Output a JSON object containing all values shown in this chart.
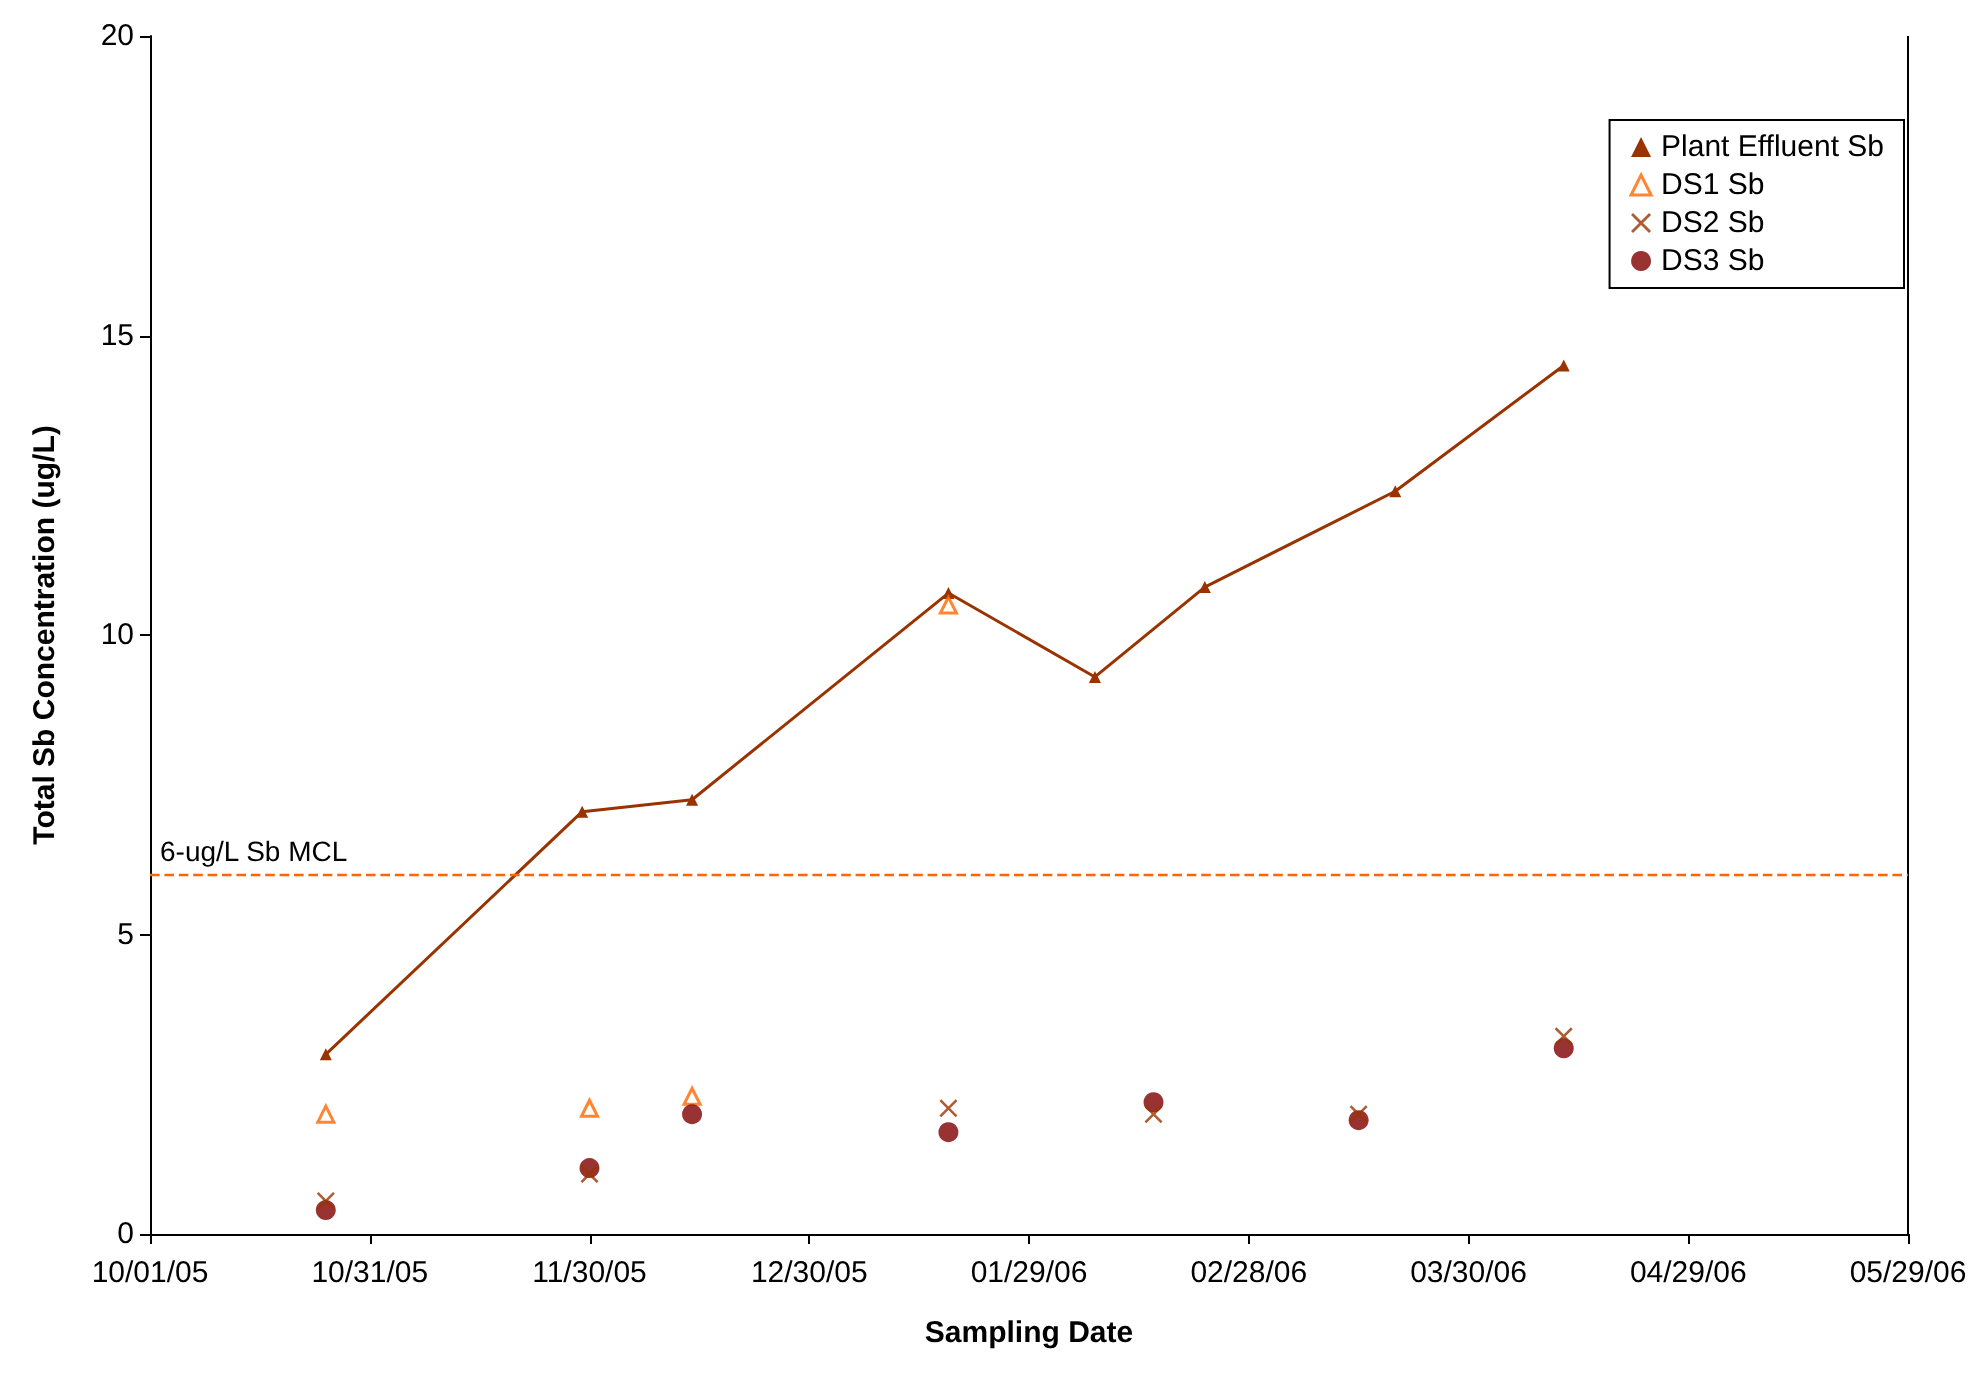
{
  "chart_data": {
    "type": "line",
    "xlabel": "Sampling Date",
    "ylabel": "Total Sb Concentration (ug/L)",
    "xlim": [
      "2005-10-01",
      "2006-05-29"
    ],
    "xticks": [
      {
        "value": "2005-10-01",
        "label": "10/01/05"
      },
      {
        "value": "2005-10-31",
        "label": "10/31/05"
      },
      {
        "value": "2005-11-30",
        "label": "11/30/05"
      },
      {
        "value": "2005-12-30",
        "label": "12/30/05"
      },
      {
        "value": "2006-01-29",
        "label": "01/29/06"
      },
      {
        "value": "2006-02-28",
        "label": "02/28/06"
      },
      {
        "value": "2006-03-30",
        "label": "03/30/06"
      },
      {
        "value": "2006-04-29",
        "label": "04/29/06"
      },
      {
        "value": "2006-05-29",
        "label": "05/29/06"
      }
    ],
    "ylim": [
      0,
      20
    ],
    "yticks": [
      0,
      5,
      10,
      15,
      20
    ],
    "grid": false,
    "legend": "top right",
    "series": [
      {
        "name": "Plant Effluent Sb",
        "marker": "triangle",
        "color": "#993300",
        "x": [
          "2005-10-25",
          "2005-11-29",
          "2005-12-14",
          "2006-01-18",
          "2006-02-07",
          "2006-02-22",
          "2006-03-20",
          "2006-04-12"
        ],
        "values": [
          3.0,
          7.05,
          7.25,
          10.7,
          9.3,
          10.8,
          12.4,
          14.5
        ]
      },
      {
        "name": "DS1 Sb",
        "type": "scatter",
        "marker": "triangle",
        "color": "#ff6600",
        "x": [
          "2005-10-25",
          "2005-11-30",
          "2005-12-14",
          "2006-01-18"
        ],
        "values": [
          2.0,
          2.1,
          2.3,
          10.5
        ]
      },
      {
        "name": "DS2 Sb",
        "type": "scatter",
        "marker": "cross",
        "color": "#993300",
        "x": [
          "2005-10-25",
          "2005-11-30",
          "2005-12-14",
          "2006-01-18",
          "2006-02-15",
          "2006-03-15",
          "2006-04-12"
        ],
        "values": [
          0.55,
          1.0,
          null,
          2.1,
          2.0,
          2.0,
          3.3
        ]
      },
      {
        "name": "DS3 Sb",
        "type": "scatter",
        "marker": "circle",
        "color": "#800000",
        "x": [
          "2005-10-25",
          "2005-11-30",
          "2005-12-14",
          "2006-01-18",
          "2006-02-15",
          "2006-03-15",
          "2006-04-12"
        ],
        "values": [
          0.4,
          1.1,
          2.0,
          1.7,
          2.2,
          1.9,
          3.1
        ]
      }
    ],
    "ref_lines": [
      {
        "axis": "y",
        "value": 6,
        "label": "6-ug/L Sb MCL",
        "color": "#ff6600",
        "line_style": "dashed"
      }
    ]
  }
}
